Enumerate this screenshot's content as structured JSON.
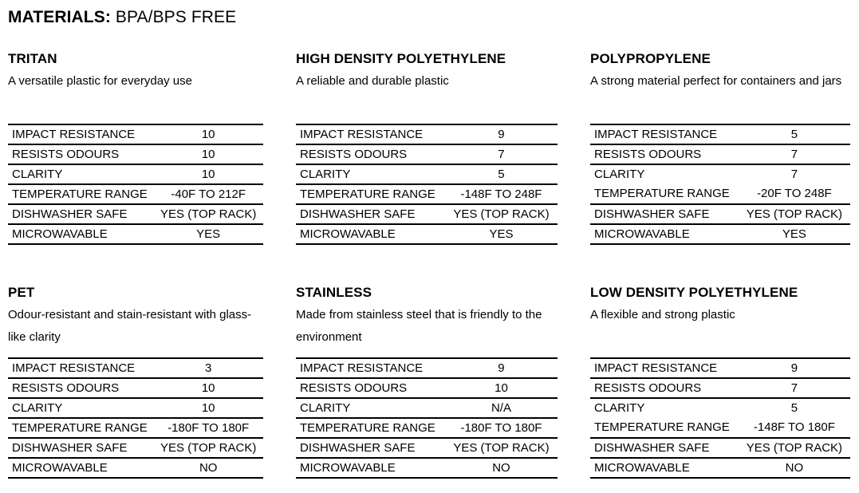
{
  "header": {
    "title_bold": "MATERIALS:",
    "title_rest": "BPA/BPS FREE"
  },
  "row_labels": [
    "IMPACT RESISTANCE",
    "RESISTS ODOURS",
    "CLARITY",
    "TEMPERATURE RANGE",
    "DISHWASHER SAFE",
    "MICROWAVABLE"
  ],
  "materials": [
    {
      "name": "TRITAN",
      "description": "A versatile plastic for everyday use",
      "values": [
        "10",
        "10",
        "10",
        "-40F TO 212F",
        "YES (TOP RACK)",
        "YES"
      ]
    },
    {
      "name": "HIGH DENSITY POLYETHYLENE",
      "description": "A reliable and durable plastic",
      "values": [
        "9",
        "7",
        "5",
        "-148F TO 248F",
        "YES (TOP RACK)",
        "YES"
      ]
    },
    {
      "name": "POLYPROPYLENE",
      "description": "A strong material perfect for containers and jars",
      "values": [
        "5",
        "7",
        "7",
        "-20F TO 248F",
        "YES (TOP RACK)",
        "YES"
      ]
    },
    {
      "name": "PET",
      "description": "Odour-resistant and stain-resistant with glass-like clarity",
      "values": [
        "3",
        "10",
        "10",
        "-180F TO 180F",
        "YES (TOP RACK)",
        "NO"
      ]
    },
    {
      "name": "STAINLESS",
      "description": "Made from stainless steel that is friendly to the environment",
      "values": [
        "9",
        "10",
        "N/A",
        "-180F TO 180F",
        "YES (TOP RACK)",
        "NO"
      ]
    },
    {
      "name": "LOW DENSITY POLYETHYLENE",
      "description": "A flexible and strong plastic",
      "values": [
        "9",
        "7",
        "5",
        "-148F TO 180F",
        "YES (TOP RACK)",
        "NO"
      ]
    }
  ]
}
